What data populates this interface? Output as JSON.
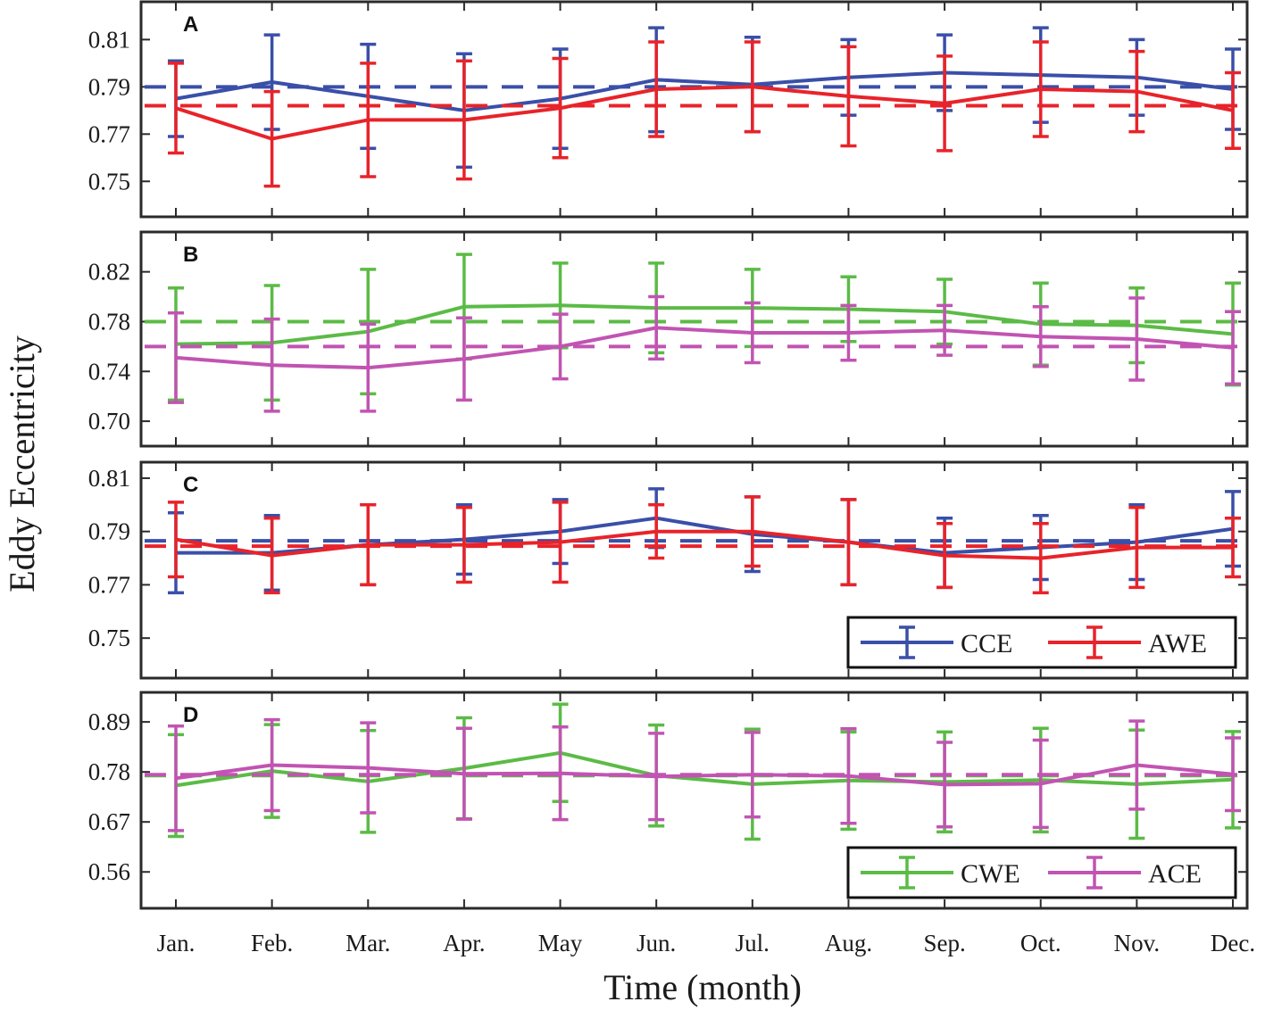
{
  "ylabel": "Eddy Eccentricity",
  "xlabel": "Time (month)",
  "months": [
    "Jan.",
    "Feb.",
    "Mar.",
    "Apr.",
    "May",
    "Jun.",
    "Jul.",
    "Aug.",
    "Sep.",
    "Oct.",
    "Nov.",
    "Dec."
  ],
  "colors": {
    "blue": "#3a4fa8",
    "red": "#e8232a",
    "green": "#5bbb46",
    "magenta": "#c154b2"
  },
  "chart_data": [
    {
      "type": "line",
      "panel": "A",
      "ylim": [
        0.735,
        0.826
      ],
      "yticks": [
        0.75,
        0.77,
        0.79,
        0.81
      ],
      "ytick_labels": [
        "0.75",
        "0.77",
        "0.79",
        "0.81"
      ],
      "legend": [],
      "series": [
        {
          "name": "CCE",
          "color": "#3a4fa8",
          "mean": 0.79,
          "values": [
            0.785,
            0.792,
            0.786,
            0.78,
            0.785,
            0.793,
            0.791,
            0.794,
            0.796,
            0.795,
            0.794,
            0.789
          ],
          "errors": [
            0.016,
            0.02,
            0.022,
            0.024,
            0.021,
            0.022,
            0.02,
            0.016,
            0.016,
            0.02,
            0.016,
            0.017
          ]
        },
        {
          "name": "AWE",
          "color": "#e8232a",
          "mean": 0.782,
          "values": [
            0.781,
            0.768,
            0.776,
            0.776,
            0.781,
            0.789,
            0.79,
            0.786,
            0.783,
            0.789,
            0.788,
            0.78
          ],
          "errors": [
            0.019,
            0.02,
            0.024,
            0.025,
            0.021,
            0.02,
            0.019,
            0.021,
            0.02,
            0.02,
            0.017,
            0.016
          ]
        }
      ]
    },
    {
      "type": "line",
      "panel": "B",
      "ylim": [
        0.68,
        0.852
      ],
      "yticks": [
        0.7,
        0.74,
        0.78,
        0.82
      ],
      "ytick_labels": [
        "0.70",
        "0.74",
        "0.78",
        "0.82"
      ],
      "legend": [],
      "series": [
        {
          "name": "CWE",
          "color": "#5bbb46",
          "mean": 0.78,
          "values": [
            0.762,
            0.763,
            0.772,
            0.792,
            0.793,
            0.791,
            0.791,
            0.79,
            0.788,
            0.778,
            0.777,
            0.77
          ],
          "errors": [
            0.045,
            0.046,
            0.05,
            0.042,
            0.034,
            0.036,
            0.031,
            0.026,
            0.026,
            0.033,
            0.03,
            0.041
          ]
        },
        {
          "name": "ACE",
          "color": "#c154b2",
          "mean": 0.76,
          "values": [
            0.751,
            0.745,
            0.743,
            0.75,
            0.76,
            0.775,
            0.771,
            0.771,
            0.773,
            0.768,
            0.766,
            0.759
          ],
          "errors": [
            0.036,
            0.037,
            0.035,
            0.033,
            0.026,
            0.025,
            0.024,
            0.022,
            0.02,
            0.024,
            0.033,
            0.029
          ]
        }
      ]
    },
    {
      "type": "line",
      "panel": "C",
      "ylim": [
        0.735,
        0.816
      ],
      "yticks": [
        0.75,
        0.77,
        0.79,
        0.81
      ],
      "ytick_labels": [
        "0.75",
        "0.77",
        "0.79",
        "0.81"
      ],
      "legend": [
        "CCE",
        "AWE"
      ],
      "series": [
        {
          "name": "CCE",
          "color": "#3a4fa8",
          "mean": 0.7865,
          "values": [
            0.782,
            0.782,
            0.785,
            0.787,
            0.79,
            0.795,
            0.789,
            0.786,
            0.782,
            0.784,
            0.786,
            0.791
          ],
          "errors": [
            0.015,
            0.014,
            0.015,
            0.013,
            0.012,
            0.011,
            0.014,
            0.016,
            0.013,
            0.012,
            0.014,
            0.014
          ]
        },
        {
          "name": "AWE",
          "color": "#e8232a",
          "mean": 0.7845,
          "values": [
            0.787,
            0.781,
            0.785,
            0.785,
            0.786,
            0.79,
            0.79,
            0.786,
            0.781,
            0.78,
            0.784,
            0.784
          ],
          "errors": [
            0.014,
            0.014,
            0.015,
            0.014,
            0.015,
            0.01,
            0.013,
            0.016,
            0.012,
            0.013,
            0.015,
            0.011
          ]
        }
      ]
    },
    {
      "type": "line",
      "panel": "D",
      "ylim": [
        0.48,
        0.955
      ],
      "yticks": [
        0.56,
        0.67,
        0.78,
        0.89
      ],
      "ytick_labels": [
        "0.56",
        "0.67",
        "0.78",
        "0.89"
      ],
      "legend": [
        "CWE",
        "ACE"
      ],
      "series": [
        {
          "name": "CWE",
          "color": "#5bbb46",
          "mean": 0.772,
          "values": [
            0.75,
            0.782,
            0.759,
            0.788,
            0.822,
            0.772,
            0.753,
            0.761,
            0.758,
            0.762,
            0.753,
            0.763
          ],
          "errors": [
            0.112,
            0.102,
            0.112,
            0.111,
            0.107,
            0.111,
            0.121,
            0.107,
            0.11,
            0.114,
            0.119,
            0.106
          ]
        },
        {
          "name": "ACE",
          "color": "#c154b2",
          "mean": 0.774,
          "values": [
            0.766,
            0.795,
            0.789,
            0.776,
            0.777,
            0.77,
            0.774,
            0.771,
            0.752,
            0.754,
            0.795,
            0.775
          ],
          "errors": [
            0.115,
            0.1,
            0.099,
            0.1,
            0.102,
            0.095,
            0.093,
            0.104,
            0.093,
            0.096,
            0.097,
            0.08
          ]
        }
      ]
    }
  ]
}
